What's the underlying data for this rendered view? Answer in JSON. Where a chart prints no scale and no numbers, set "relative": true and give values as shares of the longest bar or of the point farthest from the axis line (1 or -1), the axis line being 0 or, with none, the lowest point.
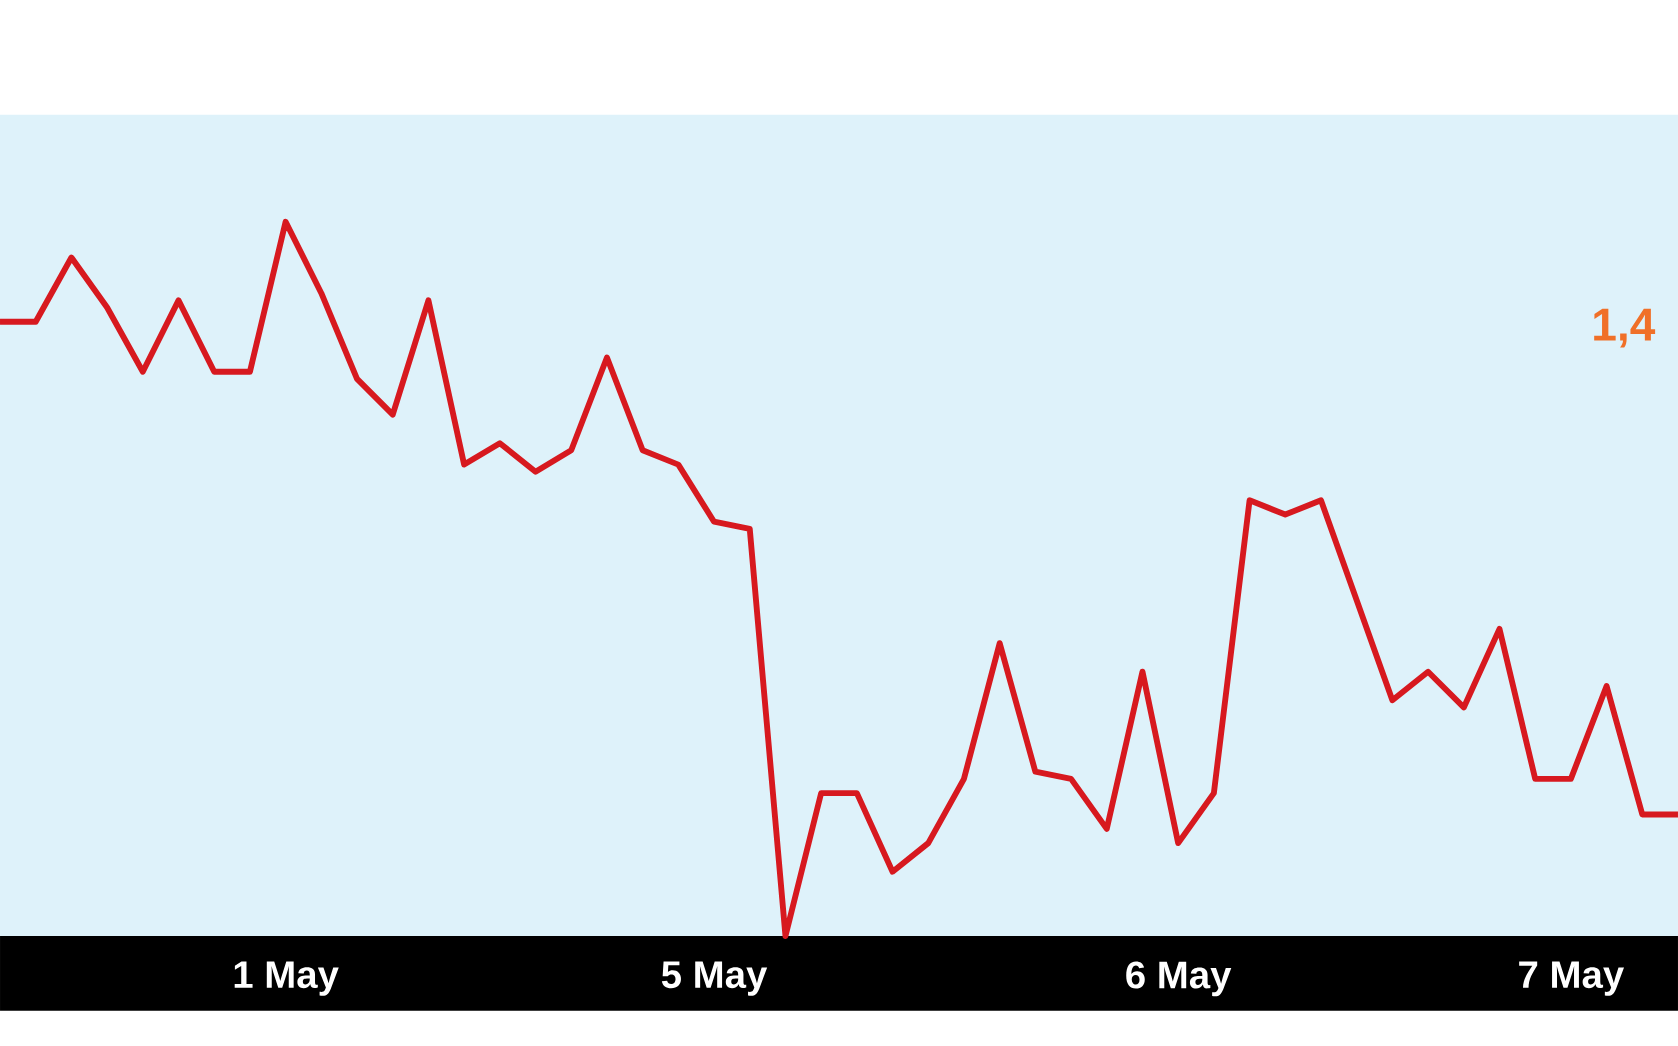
{
  "chart_data": {
    "type": "line",
    "relative": true,
    "categories": [
      null,
      null,
      null,
      null,
      null,
      null,
      null,
      null,
      "1 May",
      null,
      null,
      null,
      null,
      null,
      null,
      null,
      null,
      null,
      null,
      null,
      "5 May",
      null,
      null,
      null,
      null,
      null,
      null,
      null,
      null,
      null,
      null,
      null,
      null,
      "6 May",
      null,
      null,
      null,
      null,
      null,
      null,
      null,
      null,
      null,
      null,
      "7 May",
      null,
      null,
      null
    ],
    "series": [
      {
        "color": "#d7191f",
        "values": [
          0.86,
          0.86,
          0.95,
          0.88,
          0.79,
          0.89,
          0.79,
          0.79,
          1.0,
          0.9,
          0.78,
          0.73,
          0.89,
          0.66,
          0.69,
          0.65,
          0.68,
          0.81,
          0.68,
          0.66,
          0.58,
          0.57,
          0,
          0.2,
          0.2,
          0.09,
          0.13,
          0.22,
          0.41,
          0.23,
          0.22,
          0.15,
          0.37,
          0.13,
          0.2,
          0.61,
          0.59,
          0.61,
          0.47,
          0.33,
          0.37,
          0.32,
          0.43,
          0.22,
          0.22,
          0.35,
          0.17,
          0.17
        ]
      }
    ],
    "grid": false,
    "marker": "none",
    "line_style": "solid",
    "annotations": [
      "1,4"
    ]
  }
}
